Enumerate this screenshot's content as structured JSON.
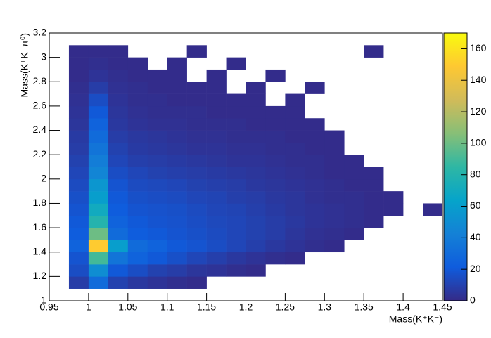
{
  "chart_data": {
    "type": "heatmap",
    "x_label": "Mass(K⁺K⁻)",
    "y_label": "Mass(K⁺K⁻π⁰)",
    "xbins": [
      0.95,
      0.975,
      1.0,
      1.025,
      1.05,
      1.075,
      1.1,
      1.125,
      1.15,
      1.175,
      1.2,
      1.225,
      1.25,
      1.275,
      1.3,
      1.325,
      1.35,
      1.375,
      1.4,
      1.425,
      1.45
    ],
    "ybins": [
      1.0,
      1.1,
      1.2,
      1.3,
      1.4,
      1.5,
      1.6,
      1.7,
      1.8,
      1.9,
      2.0,
      2.1,
      2.2,
      2.3,
      2.4,
      2.5,
      2.6,
      2.7,
      2.8,
      2.9,
      3.0,
      3.1,
      3.2
    ],
    "z": [
      [
        0,
        0,
        0,
        0,
        0,
        0,
        0,
        0,
        0,
        0,
        0,
        0,
        0,
        0,
        0,
        0,
        0,
        0,
        0,
        0
      ],
      [
        0,
        8,
        30,
        10,
        6,
        4,
        2,
        1,
        0,
        0,
        0,
        0,
        0,
        0,
        0,
        0,
        0,
        0,
        0,
        0
      ],
      [
        0,
        15,
        50,
        20,
        15,
        10,
        8,
        5,
        4,
        2,
        1,
        0,
        0,
        0,
        0,
        0,
        0,
        0,
        0,
        0
      ],
      [
        0,
        18,
        90,
        35,
        25,
        20,
        16,
        12,
        9,
        6,
        4,
        2,
        1,
        0,
        0,
        0,
        0,
        0,
        0,
        0
      ],
      [
        0,
        25,
        150,
        60,
        30,
        25,
        20,
        18,
        15,
        12,
        9,
        6,
        4,
        2,
        1,
        0,
        0,
        0,
        0,
        0
      ],
      [
        0,
        22,
        100,
        30,
        22,
        20,
        18,
        16,
        14,
        12,
        10,
        8,
        5,
        3,
        2,
        1,
        0,
        0,
        0,
        0
      ],
      [
        0,
        20,
        80,
        25,
        20,
        18,
        17,
        15,
        13,
        12,
        10,
        8,
        6,
        4,
        3,
        2,
        1,
        0,
        0,
        0
      ],
      [
        0,
        18,
        70,
        22,
        18,
        17,
        16,
        14,
        12,
        11,
        9,
        7,
        5,
        4,
        3,
        2,
        1,
        1,
        0,
        1
      ],
      [
        0,
        16,
        60,
        20,
        16,
        15,
        14,
        12,
        11,
        9,
        8,
        6,
        5,
        3,
        2,
        2,
        1,
        1,
        0,
        0
      ],
      [
        0,
        14,
        55,
        18,
        14,
        13,
        12,
        10,
        9,
        8,
        6,
        5,
        4,
        3,
        2,
        1,
        1,
        0,
        0,
        0
      ],
      [
        0,
        12,
        45,
        15,
        12,
        10,
        9,
        8,
        7,
        6,
        5,
        4,
        3,
        2,
        1,
        1,
        1,
        0,
        0,
        0
      ],
      [
        0,
        10,
        40,
        12,
        9,
        8,
        7,
        6,
        5,
        4,
        4,
        3,
        2,
        2,
        1,
        1,
        0,
        0,
        0,
        0
      ],
      [
        0,
        8,
        35,
        10,
        7,
        6,
        5,
        4,
        4,
        3,
        3,
        2,
        2,
        1,
        1,
        0,
        0,
        0,
        0,
        0
      ],
      [
        0,
        7,
        30,
        8,
        6,
        5,
        4,
        3,
        3,
        2,
        2,
        2,
        1,
        1,
        1,
        0,
        0,
        0,
        0,
        0
      ],
      [
        0,
        5,
        25,
        6,
        4,
        3,
        3,
        2,
        2,
        2,
        1,
        1,
        1,
        1,
        0,
        0,
        0,
        0,
        0,
        0
      ],
      [
        0,
        4,
        20,
        5,
        3,
        2,
        2,
        2,
        1,
        1,
        1,
        1,
        1,
        0,
        0,
        0,
        0,
        0,
        0,
        0
      ],
      [
        0,
        3,
        15,
        4,
        2,
        2,
        1,
        1,
        1,
        1,
        1,
        0,
        1,
        0,
        0,
        0,
        0,
        0,
        0,
        0
      ],
      [
        0,
        2,
        8,
        3,
        2,
        1,
        1,
        1,
        1,
        0,
        1,
        0,
        0,
        1,
        0,
        0,
        0,
        0,
        0,
        0
      ],
      [
        0,
        1,
        4,
        2,
        1,
        1,
        1,
        0,
        1,
        0,
        0,
        1,
        0,
        0,
        0,
        0,
        0,
        0,
        0,
        0
      ],
      [
        0,
        1,
        2,
        1,
        1,
        0,
        1,
        0,
        0,
        1,
        0,
        0,
        0,
        0,
        0,
        0,
        0,
        0,
        0,
        0
      ],
      [
        0,
        1,
        1,
        1,
        0,
        0,
        0,
        1,
        0,
        0,
        0,
        0,
        0,
        0,
        0,
        0,
        1,
        0,
        0,
        0
      ],
      [
        0,
        0,
        0,
        0,
        0,
        0,
        0,
        0,
        0,
        0,
        0,
        0,
        0,
        0,
        0,
        0,
        0,
        0,
        0,
        0
      ]
    ],
    "xlim": [
      0.95,
      1.45
    ],
    "xticks": [
      0.95,
      1,
      1.05,
      1.1,
      1.15,
      1.2,
      1.25,
      1.3,
      1.35,
      1.4,
      1.45
    ],
    "ylim": [
      1,
      3.2
    ],
    "yticks": [
      1,
      1.2,
      1.4,
      1.6,
      1.8,
      2,
      2.2,
      2.4,
      2.6,
      2.8,
      3,
      3.2
    ],
    "zlim": [
      0,
      170
    ],
    "zticks": [
      0,
      20,
      40,
      60,
      80,
      100,
      120,
      140,
      160
    ],
    "colorscale": [
      "#352a87",
      "#0f5cdd",
      "#1481d6",
      "#06a4ca",
      "#2eb7a4",
      "#87bf77",
      "#d1bb59",
      "#fec832",
      "#f9fb0e"
    ]
  }
}
